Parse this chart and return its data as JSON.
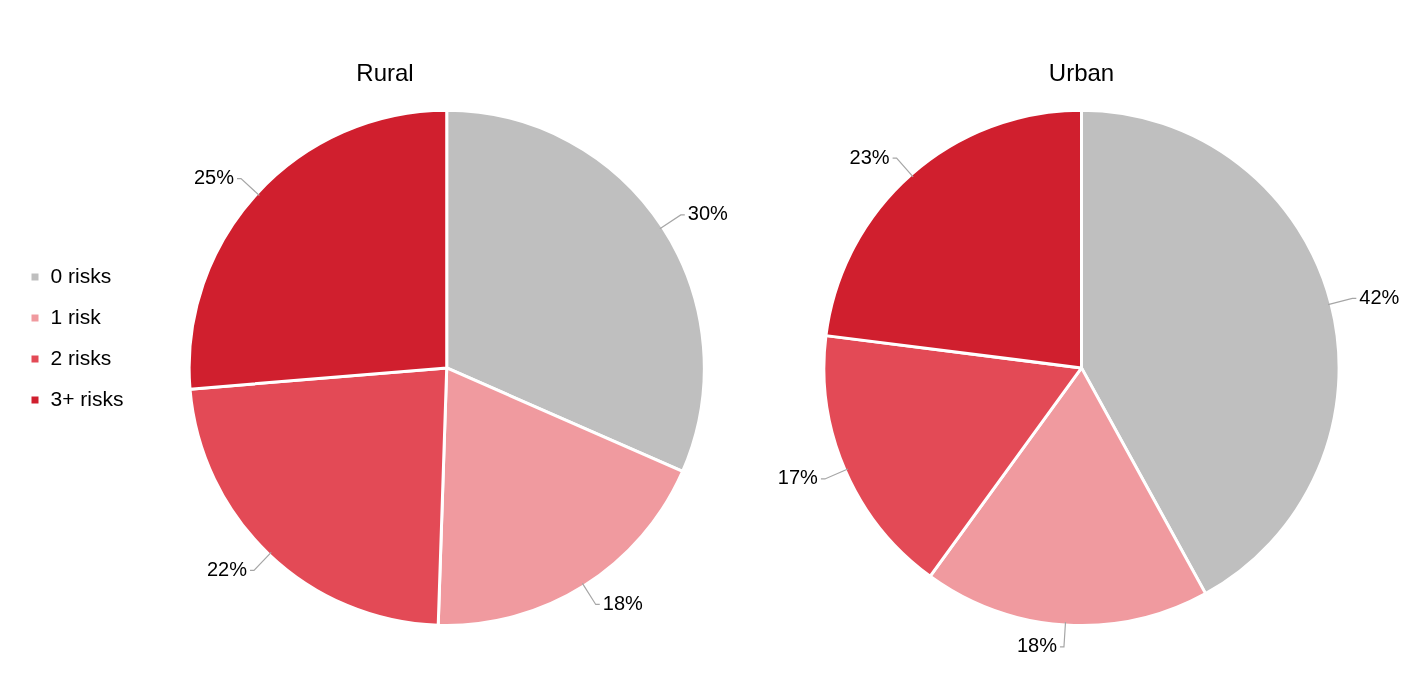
{
  "chart_data": [
    {
      "type": "pie",
      "title": "Rural",
      "categories": [
        "0 risks",
        "1 risk",
        "2 risks",
        "3+ risks"
      ],
      "values": [
        30,
        18,
        22,
        25
      ],
      "value_labels": [
        "30%",
        "18%",
        "22%",
        "25%"
      ],
      "colors": [
        "#bfbfbf",
        "#f09a9f",
        "#e34a56",
        "#d01f2e"
      ],
      "legend": "left"
    },
    {
      "type": "pie",
      "title": "Urban",
      "values": [
        42,
        18,
        17,
        23
      ],
      "value_labels": [
        "42%",
        "18%",
        "17%",
        "23%"
      ],
      "colors": [
        "#bfbfbf",
        "#f09a9f",
        "#e34a56",
        "#d01f2e"
      ],
      "legend": false
    }
  ]
}
